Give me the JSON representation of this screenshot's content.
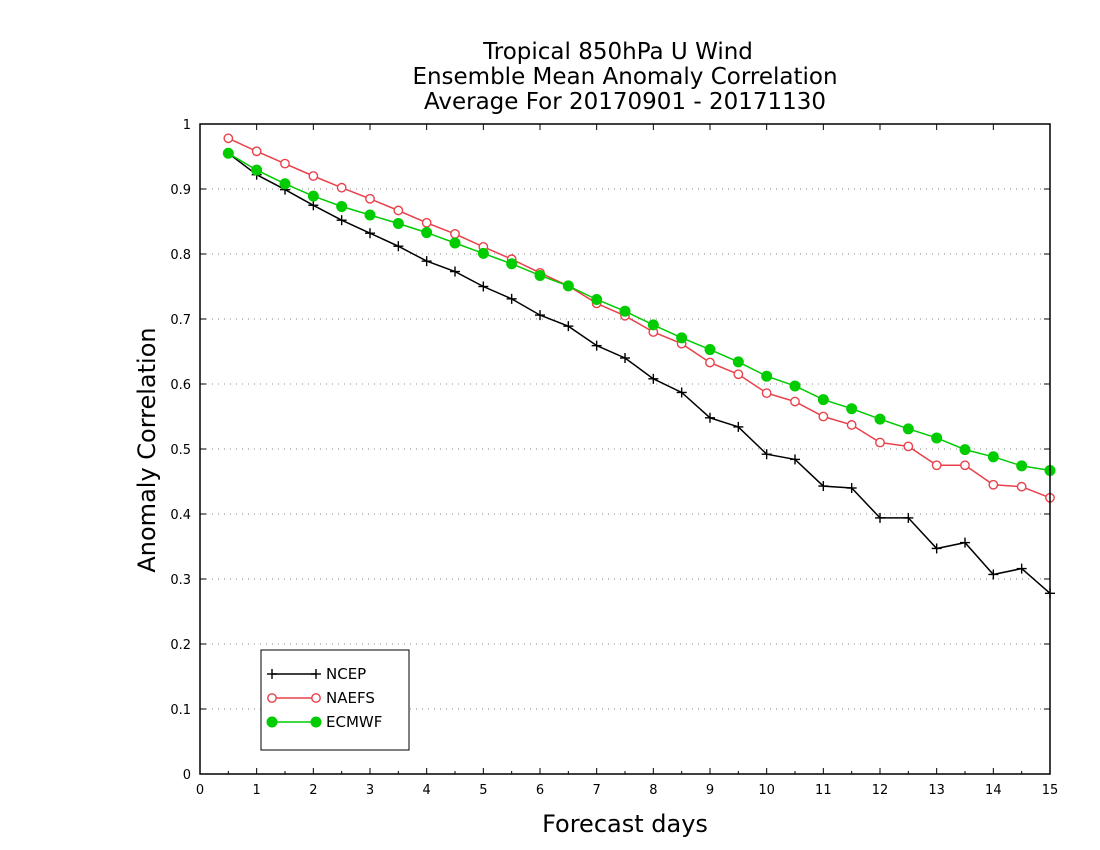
{
  "chart_data": {
    "type": "line",
    "title": [
      "Tropical 850hPa U Wind",
      "Ensemble Mean Anomaly Correlation",
      "Average For 20170901 - 20171130"
    ],
    "xlabel": "Forecast days",
    "ylabel": "Anomaly Correlation",
    "xlim": [
      0,
      15
    ],
    "ylim": [
      0,
      1
    ],
    "xticks": [
      "0",
      "1",
      "2",
      "3",
      "4",
      "5",
      "6",
      "7",
      "8",
      "9",
      "10",
      "11",
      "12",
      "13",
      "14",
      "15"
    ],
    "yticks": [
      "0",
      "0.1",
      "0.2",
      "0.3",
      "0.4",
      "0.5",
      "0.6",
      "0.7",
      "0.8",
      "0.9",
      "1"
    ],
    "grid": "horizontal dotted",
    "legend_position": "bottom-left",
    "x": [
      0.5,
      1,
      1.5,
      2,
      2.5,
      3,
      3.5,
      4,
      4.5,
      5,
      5.5,
      6,
      6.5,
      7,
      7.5,
      8,
      8.5,
      9,
      9.5,
      10,
      10.5,
      11,
      11.5,
      12,
      12.5,
      13,
      13.5,
      14,
      14.5,
      15
    ],
    "series": [
      {
        "name": "NCEP",
        "color": "#000000",
        "marker": "plus",
        "values": [
          0.955,
          0.922,
          0.899,
          0.875,
          0.852,
          0.832,
          0.812,
          0.789,
          0.773,
          0.75,
          0.731,
          0.706,
          0.689,
          0.659,
          0.64,
          0.608,
          0.587,
          0.548,
          0.534,
          0.492,
          0.484,
          0.443,
          0.44,
          0.394,
          0.394,
          0.347,
          0.356,
          0.307,
          0.316,
          0.278
        ]
      },
      {
        "name": "NAEFS",
        "color": "#e8414a",
        "marker": "open-circle",
        "values": [
          0.978,
          0.958,
          0.939,
          0.92,
          0.902,
          0.885,
          0.867,
          0.848,
          0.831,
          0.811,
          0.792,
          0.771,
          0.751,
          0.724,
          0.705,
          0.68,
          0.662,
          0.633,
          0.615,
          0.586,
          0.573,
          0.55,
          0.537,
          0.51,
          0.504,
          0.475,
          0.475,
          0.445,
          0.442,
          0.425
        ]
      },
      {
        "name": "ECMWF",
        "color": "#00cc00",
        "marker": "filled-circle",
        "values": [
          0.955,
          0.929,
          0.908,
          0.889,
          0.873,
          0.86,
          0.847,
          0.833,
          0.817,
          0.801,
          0.785,
          0.767,
          0.751,
          0.73,
          0.712,
          0.691,
          0.671,
          0.653,
          0.634,
          0.612,
          0.597,
          0.576,
          0.562,
          0.546,
          0.531,
          0.517,
          0.499,
          0.488,
          0.474,
          0.467
        ]
      }
    ]
  }
}
